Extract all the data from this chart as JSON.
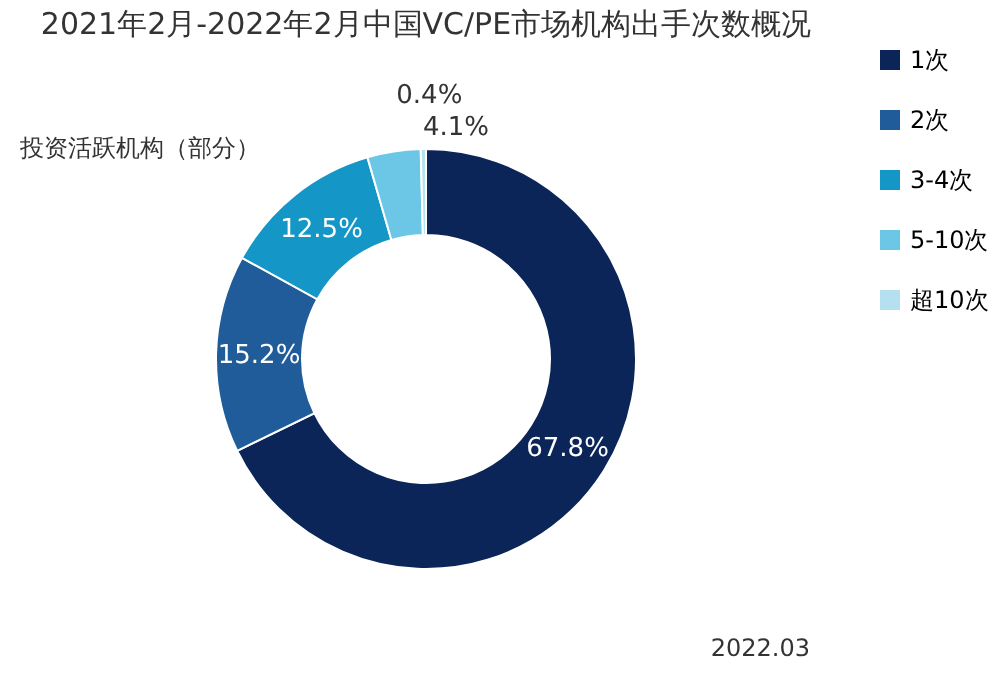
{
  "chart_data": {
    "type": "donut",
    "title": "2021年2月-2022年2月中国VC/PE市场机构出手次数概况",
    "categories": [
      "1次",
      "2次",
      "3-4次",
      "5-10次",
      "超10次"
    ],
    "values": [
      67.8,
      15.2,
      12.5,
      4.1,
      0.4
    ],
    "colors": [
      "#0b2559",
      "#1f5c99",
      "#1496c6",
      "#6cc7e6",
      "#b5e0f0"
    ],
    "value_labels": [
      "67.8%",
      "15.2%",
      "12.5%",
      "4.1%",
      "0.4%"
    ],
    "legend": "right",
    "annotations": [
      "投资活跃机构（部分）",
      "2022.03"
    ]
  }
}
